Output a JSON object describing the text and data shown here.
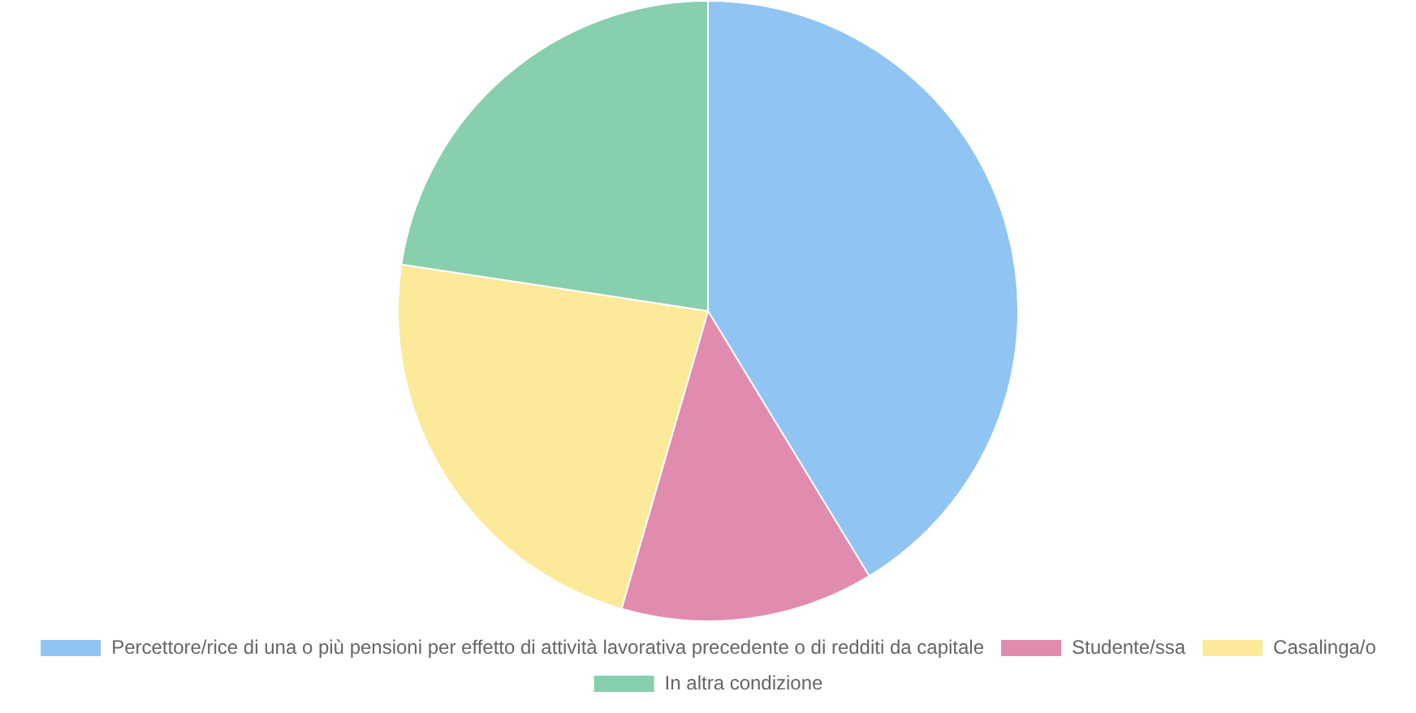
{
  "chart_data": {
    "type": "pie",
    "categories": [
      "Percettore/rice di una o più pensioni per effetto di attività lavorativa precedente o di redditi da capitale",
      "Studente/ssa",
      "Casalinga/o",
      "In altra condizione"
    ],
    "values": [
      41.3,
      13.2,
      22.9,
      22.6
    ],
    "colors": [
      "#90c4f2",
      "#e18baf",
      "#fcea9a",
      "#88cfae"
    ],
    "legend": "bottom"
  }
}
